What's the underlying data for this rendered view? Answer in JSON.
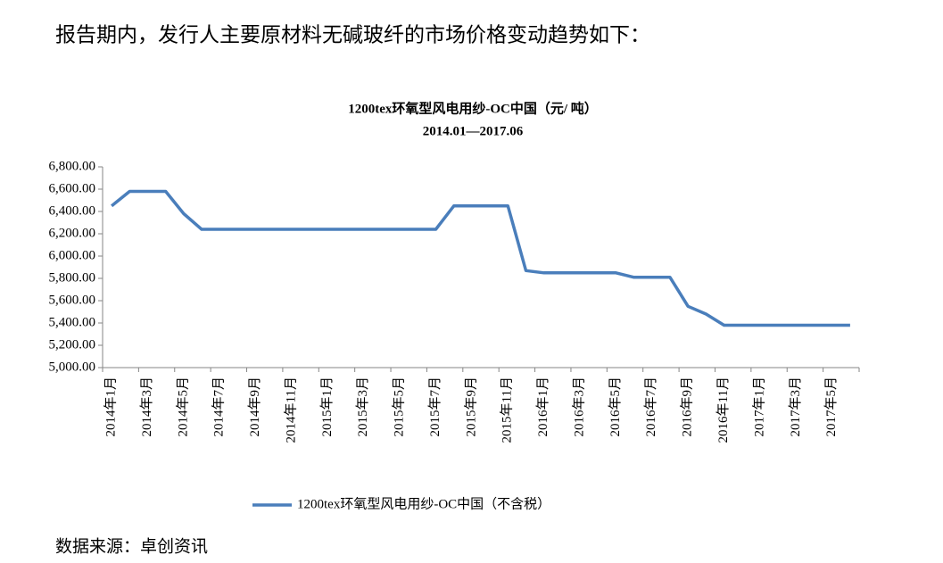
{
  "heading": "报告期内，发行人主要原材料无碱玻纤的市场价格变动趋势如下：",
  "source": "数据来源：卓创资讯",
  "chart_data": {
    "type": "line",
    "title": "1200tex环氧型风电用纱-OC中国（元/ 吨）",
    "subtitle": "2014.01—2017.06",
    "categories": [
      "2014年1月",
      null,
      "2014年3月",
      null,
      "2014年5月",
      null,
      "2014年7月",
      null,
      "2014年9月",
      null,
      "2014年11月",
      null,
      "2015年1月",
      null,
      "2015年3月",
      null,
      "2015年5月",
      null,
      "2015年7月",
      null,
      "2015年9月",
      null,
      "2015年11月",
      null,
      "2016年1月",
      null,
      "2016年3月",
      null,
      "2016年5月",
      null,
      "2016年7月",
      null,
      "2016年9月",
      null,
      "2016年11月",
      null,
      "2017年1月",
      null,
      "2017年3月",
      null,
      "2017年5月",
      null
    ],
    "series": [
      {
        "name": "1200tex环氧型风电用纱-OC中国（不含税）",
        "color": "#4a7ebb",
        "values": [
          6450,
          6580,
          6580,
          6580,
          6380,
          6240,
          6240,
          6240,
          6240,
          6240,
          6240,
          6240,
          6240,
          6240,
          6240,
          6240,
          6240,
          6240,
          6240,
          6450,
          6450,
          6450,
          6450,
          5870,
          5850,
          5850,
          5850,
          5850,
          5850,
          5810,
          5810,
          5810,
          5550,
          5480,
          5380,
          5380,
          5380,
          5380,
          5380,
          5380,
          5380,
          5380
        ]
      }
    ],
    "ylim": [
      5000,
      6800
    ],
    "yticks": [
      {
        "value": 5000,
        "label": "5,000.00"
      },
      {
        "value": 5200,
        "label": "5,200.00"
      },
      {
        "value": 5400,
        "label": "5,400.00"
      },
      {
        "value": 5600,
        "label": "5,600.00"
      },
      {
        "value": 5800,
        "label": "5,800.00"
      },
      {
        "value": 6000,
        "label": "6,000.00"
      },
      {
        "value": 6200,
        "label": "6,200.00"
      },
      {
        "value": 6400,
        "label": "6,400.00"
      },
      {
        "value": 6600,
        "label": "6,600.00"
      },
      {
        "value": 6800,
        "label": "6,800.00"
      }
    ],
    "grid": false,
    "legend": "bottom"
  }
}
